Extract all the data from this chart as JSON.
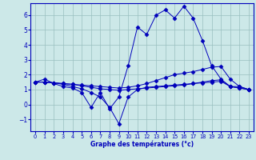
{
  "xlabel": "Graphe des températures (°c)",
  "background_color": "#cce8e8",
  "grid_color": "#99bfbf",
  "line_color": "#0000bb",
  "spine_color": "#0000bb",
  "x_ticks": [
    0,
    1,
    2,
    3,
    4,
    5,
    6,
    7,
    8,
    9,
    10,
    11,
    12,
    13,
    14,
    15,
    16,
    17,
    18,
    19,
    20,
    21,
    22,
    23
  ],
  "ylim": [
    -1.8,
    6.8
  ],
  "yticks": [
    -1,
    0,
    1,
    2,
    3,
    4,
    5,
    6
  ],
  "series": [
    {
      "x": [
        0,
        1,
        2,
        3,
        4,
        5,
        6,
        7,
        8,
        9,
        10,
        11,
        12,
        13,
        14,
        15,
        16,
        17,
        18,
        19,
        20,
        21,
        22,
        23
      ],
      "y": [
        1.5,
        1.7,
        1.4,
        1.2,
        1.1,
        0.8,
        -0.2,
        0.8,
        -0.3,
        0.5,
        2.6,
        5.2,
        4.7,
        6.0,
        6.35,
        5.8,
        6.6,
        5.8,
        4.3,
        2.6,
        1.7,
        1.2,
        1.2,
        1.0
      ],
      "marker": "D",
      "markersize": 2.5
    },
    {
      "x": [
        0,
        1,
        2,
        3,
        4,
        5,
        6,
        7,
        8,
        9,
        10,
        11,
        12,
        13,
        14,
        15,
        16,
        17,
        18,
        19,
        20,
        21,
        22,
        23
      ],
      "y": [
        1.5,
        1.5,
        1.45,
        1.4,
        1.35,
        1.3,
        1.25,
        1.2,
        1.15,
        1.1,
        1.15,
        1.25,
        1.4,
        1.6,
        1.8,
        2.0,
        2.1,
        2.2,
        2.35,
        2.5,
        2.55,
        1.7,
        1.2,
        1.0
      ],
      "marker": "D",
      "markersize": 2.5
    },
    {
      "x": [
        0,
        1,
        2,
        3,
        4,
        5,
        6,
        7,
        8,
        9,
        10,
        11,
        12,
        13,
        14,
        15,
        16,
        17,
        18,
        19,
        20,
        21,
        22,
        23
      ],
      "y": [
        1.5,
        1.5,
        1.45,
        1.4,
        1.35,
        1.25,
        1.15,
        1.05,
        1.0,
        0.95,
        1.0,
        1.05,
        1.1,
        1.15,
        1.2,
        1.25,
        1.3,
        1.4,
        1.5,
        1.6,
        1.65,
        1.2,
        1.1,
        1.0
      ],
      "marker": "D",
      "markersize": 2.5
    },
    {
      "x": [
        0,
        1,
        2,
        3,
        4,
        5,
        6,
        7,
        8,
        9,
        10,
        11,
        12,
        13,
        14,
        15,
        16,
        17,
        18,
        19,
        20,
        21,
        22,
        23
      ],
      "y": [
        1.5,
        1.5,
        1.45,
        1.35,
        1.2,
        1.05,
        0.8,
        0.5,
        -0.2,
        -1.3,
        0.5,
        1.0,
        1.15,
        1.2,
        1.25,
        1.3,
        1.35,
        1.4,
        1.45,
        1.5,
        1.55,
        1.2,
        1.1,
        1.0
      ],
      "marker": "D",
      "markersize": 2.5
    }
  ]
}
